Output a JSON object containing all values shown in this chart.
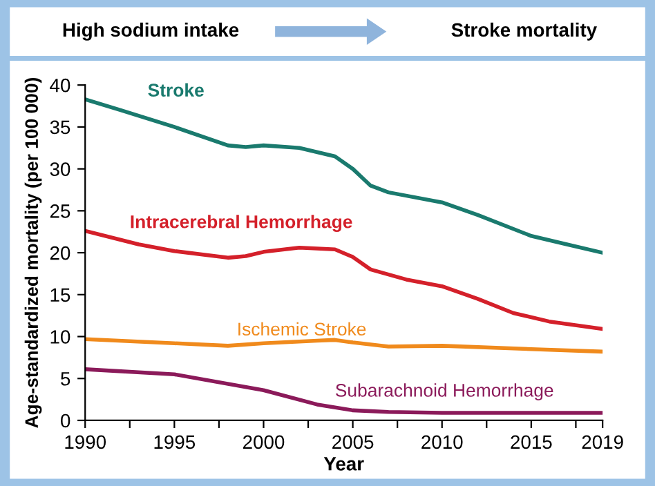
{
  "chart_data": {
    "type": "line",
    "annotations": [
      "High sodium intake",
      "Stroke mortality"
    ],
    "xlabel": "Year",
    "ylabel": "Age-standardized mortality (per 100 000)",
    "xlim": [
      1990,
      2019
    ],
    "ylim": [
      0,
      40
    ],
    "xticks": [
      1990,
      {
        "value": 1992.5,
        "label": null
      },
      1995,
      {
        "value": 1997.5,
        "label": null
      },
      2000,
      {
        "value": 2002.5,
        "label": null
      },
      2005,
      {
        "value": 2007.5,
        "label": null
      },
      2010,
      {
        "value": 2012.5,
        "label": null
      },
      2015,
      {
        "value": 2017.5,
        "label": null
      },
      2019
    ],
    "yticks": [
      0,
      5,
      10,
      15,
      20,
      25,
      30,
      35,
      40
    ],
    "grid": false,
    "legend": false,
    "line_style": "solid",
    "marker": "none",
    "series": [
      {
        "name": "Stroke",
        "color": "#1a7a6e",
        "x": [
          1990,
          1992,
          1995,
          1998,
          1999,
          2000,
          2002,
          2004,
          2005,
          2006,
          2007,
          2010,
          2012,
          2015,
          2017,
          2019
        ],
        "values": [
          38.3,
          37,
          35,
          32.8,
          32.6,
          32.8,
          32.5,
          31.5,
          30,
          28,
          27.2,
          26,
          24.5,
          22,
          21,
          20
        ]
      },
      {
        "name": "Intracerebral Hemorrhage",
        "color": "#d4202a",
        "x": [
          1990,
          1993,
          1995,
          1998,
          1999,
          2000,
          2002,
          2004,
          2005,
          2006,
          2008,
          2010,
          2012,
          2014,
          2016,
          2019
        ],
        "values": [
          22.6,
          21,
          20.2,
          19.4,
          19.6,
          20.1,
          20.6,
          20.4,
          19.5,
          18,
          16.8,
          16,
          14.5,
          12.8,
          11.8,
          10.9
        ]
      },
      {
        "name": "Ischemic Stroke",
        "color": "#f08a1c",
        "x": [
          1990,
          1995,
          1998,
          2000,
          2003,
          2004,
          2005,
          2007,
          2010,
          2015,
          2019
        ],
        "values": [
          9.7,
          9.2,
          8.9,
          9.2,
          9.5,
          9.6,
          9.3,
          8.8,
          8.9,
          8.5,
          8.2
        ]
      },
      {
        "name": "Subarachnoid Hemorrhage",
        "color": "#8b1a5a",
        "x": [
          1990,
          1995,
          2000,
          2003,
          2005,
          2007,
          2010,
          2019
        ],
        "values": [
          6.1,
          5.5,
          3.6,
          1.9,
          1.2,
          1.0,
          0.9,
          0.9
        ]
      }
    ]
  }
}
